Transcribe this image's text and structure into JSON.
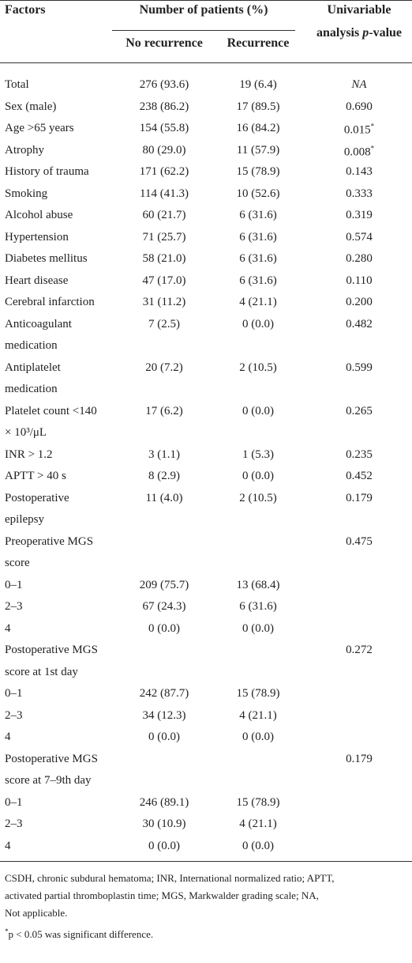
{
  "header": {
    "factors": "Factors",
    "patients_group": "Number of patients (%)",
    "no_recurrence": "No recurrence",
    "recurrence": "Recurrence",
    "p_value_title": {
      "line1": "Univariable",
      "line2_before": "analysis ",
      "line2_italic": "p",
      "line2_after": "-value"
    }
  },
  "rows": [
    {
      "factor": [
        "Total"
      ],
      "no_recurrence": "276 (93.6)",
      "recurrence": "19 (6.4)",
      "p_value": {
        "text": "NA",
        "style": "italic"
      }
    },
    {
      "factor": [
        "Sex (male)"
      ],
      "no_recurrence": "238 (86.2)",
      "recurrence": "17 (89.5)",
      "p_value": "0.690"
    },
    {
      "factor": [
        "Age >65 years"
      ],
      "no_recurrence": "154 (55.8)",
      "recurrence": "16 (84.2)",
      "p_value": {
        "text": "0.015",
        "superscript": "*"
      }
    },
    {
      "factor": [
        "Atrophy"
      ],
      "no_recurrence": "80 (29.0)",
      "recurrence": "11 (57.9)",
      "p_value": {
        "text": "0.008",
        "superscript": "*"
      }
    },
    {
      "factor": [
        "History of trauma"
      ],
      "no_recurrence": "171 (62.2)",
      "recurrence": "15 (78.9)",
      "p_value": "0.143"
    },
    {
      "factor": [
        "Smoking"
      ],
      "no_recurrence": "114 (41.3)",
      "recurrence": "10 (52.6)",
      "p_value": "0.333"
    },
    {
      "factor": [
        "Alcohol abuse"
      ],
      "no_recurrence": "60 (21.7)",
      "recurrence": "6 (31.6)",
      "p_value": "0.319"
    },
    {
      "factor": [
        "Hypertension"
      ],
      "no_recurrence": "71 (25.7)",
      "recurrence": "6 (31.6)",
      "p_value": "0.574"
    },
    {
      "factor": [
        "Diabetes mellitus"
      ],
      "no_recurrence": "58 (21.0)",
      "recurrence": "6 (31.6)",
      "p_value": "0.280"
    },
    {
      "factor": [
        "Heart disease"
      ],
      "no_recurrence": "47 (17.0)",
      "recurrence": "6 (31.6)",
      "p_value": "0.110"
    },
    {
      "factor": [
        "Cerebral infarction"
      ],
      "no_recurrence": "31 (11.2)",
      "recurrence": "4 (21.1)",
      "p_value": "0.200"
    },
    {
      "factor": [
        "Anticoagulant",
        "medication"
      ],
      "no_recurrence": "7 (2.5)",
      "recurrence": "0 (0.0)",
      "p_value": "0.482"
    },
    {
      "factor": [
        "Antiplatelet",
        "medication"
      ],
      "no_recurrence": "20 (7.2)",
      "recurrence": "2 (10.5)",
      "p_value": "0.599"
    },
    {
      "factor": [
        "Platelet count <140",
        "× 10³/μL"
      ],
      "no_recurrence": "17 (6.2)",
      "recurrence": "0 (0.0)",
      "p_value": "0.265"
    },
    {
      "factor": [
        "INR > 1.2"
      ],
      "no_recurrence": "3 (1.1)",
      "recurrence": "1 (5.3)",
      "p_value": "0.235"
    },
    {
      "factor": [
        "APTT > 40 s"
      ],
      "no_recurrence": "8 (2.9)",
      "recurrence": "0 (0.0)",
      "p_value": "0.452"
    },
    {
      "factor": [
        "Postoperative",
        "epilepsy"
      ],
      "no_recurrence": "11 (4.0)",
      "recurrence": "2 (10.5)",
      "p_value": "0.179"
    },
    {
      "factor": [
        "Preoperative MGS",
        "score"
      ],
      "p_value": "0.475"
    },
    {
      "factor": [
        "0–1"
      ],
      "no_recurrence": "209 (75.7)",
      "recurrence": "13 (68.4)"
    },
    {
      "factor": [
        "2–3"
      ],
      "no_recurrence": "67 (24.3)",
      "recurrence": "6 (31.6)"
    },
    {
      "factor": [
        "4"
      ],
      "no_recurrence": "0 (0.0)",
      "recurrence": "0 (0.0)"
    },
    {
      "factor": [
        "Postoperative MGS",
        "score at 1st day"
      ],
      "p_value": "0.272"
    },
    {
      "factor": [
        "0–1"
      ],
      "no_recurrence": "242 (87.7)",
      "recurrence": "15 (78.9)"
    },
    {
      "factor": [
        "2–3"
      ],
      "no_recurrence": "34 (12.3)",
      "recurrence": "4 (21.1)"
    },
    {
      "factor": [
        "4"
      ],
      "no_recurrence": "0 (0.0)",
      "recurrence": "0 (0.0)"
    },
    {
      "factor": [
        "Postoperative MGS",
        "score at 7–9th day"
      ],
      "p_value": "0.179"
    },
    {
      "factor": [
        "0–1"
      ],
      "no_recurrence": "246 (89.1)",
      "recurrence": "15 (78.9)"
    },
    {
      "factor": [
        "2–3"
      ],
      "no_recurrence": "30 (10.9)",
      "recurrence": "4 (21.1)"
    },
    {
      "factor": [
        "4"
      ],
      "no_recurrence": "0 (0.0)",
      "recurrence": "0 (0.0)"
    }
  ],
  "footnotes": {
    "abbreviations": [
      "CSDH, chronic subdural hematoma; INR, International normalized ratio; APTT,",
      "activated partial thromboplastin time; MGS, Markwalder grading scale; NA,",
      "Not applicable."
    ],
    "significance": {
      "mark": "*",
      "text": "p < 0.05 was significant difference."
    }
  }
}
